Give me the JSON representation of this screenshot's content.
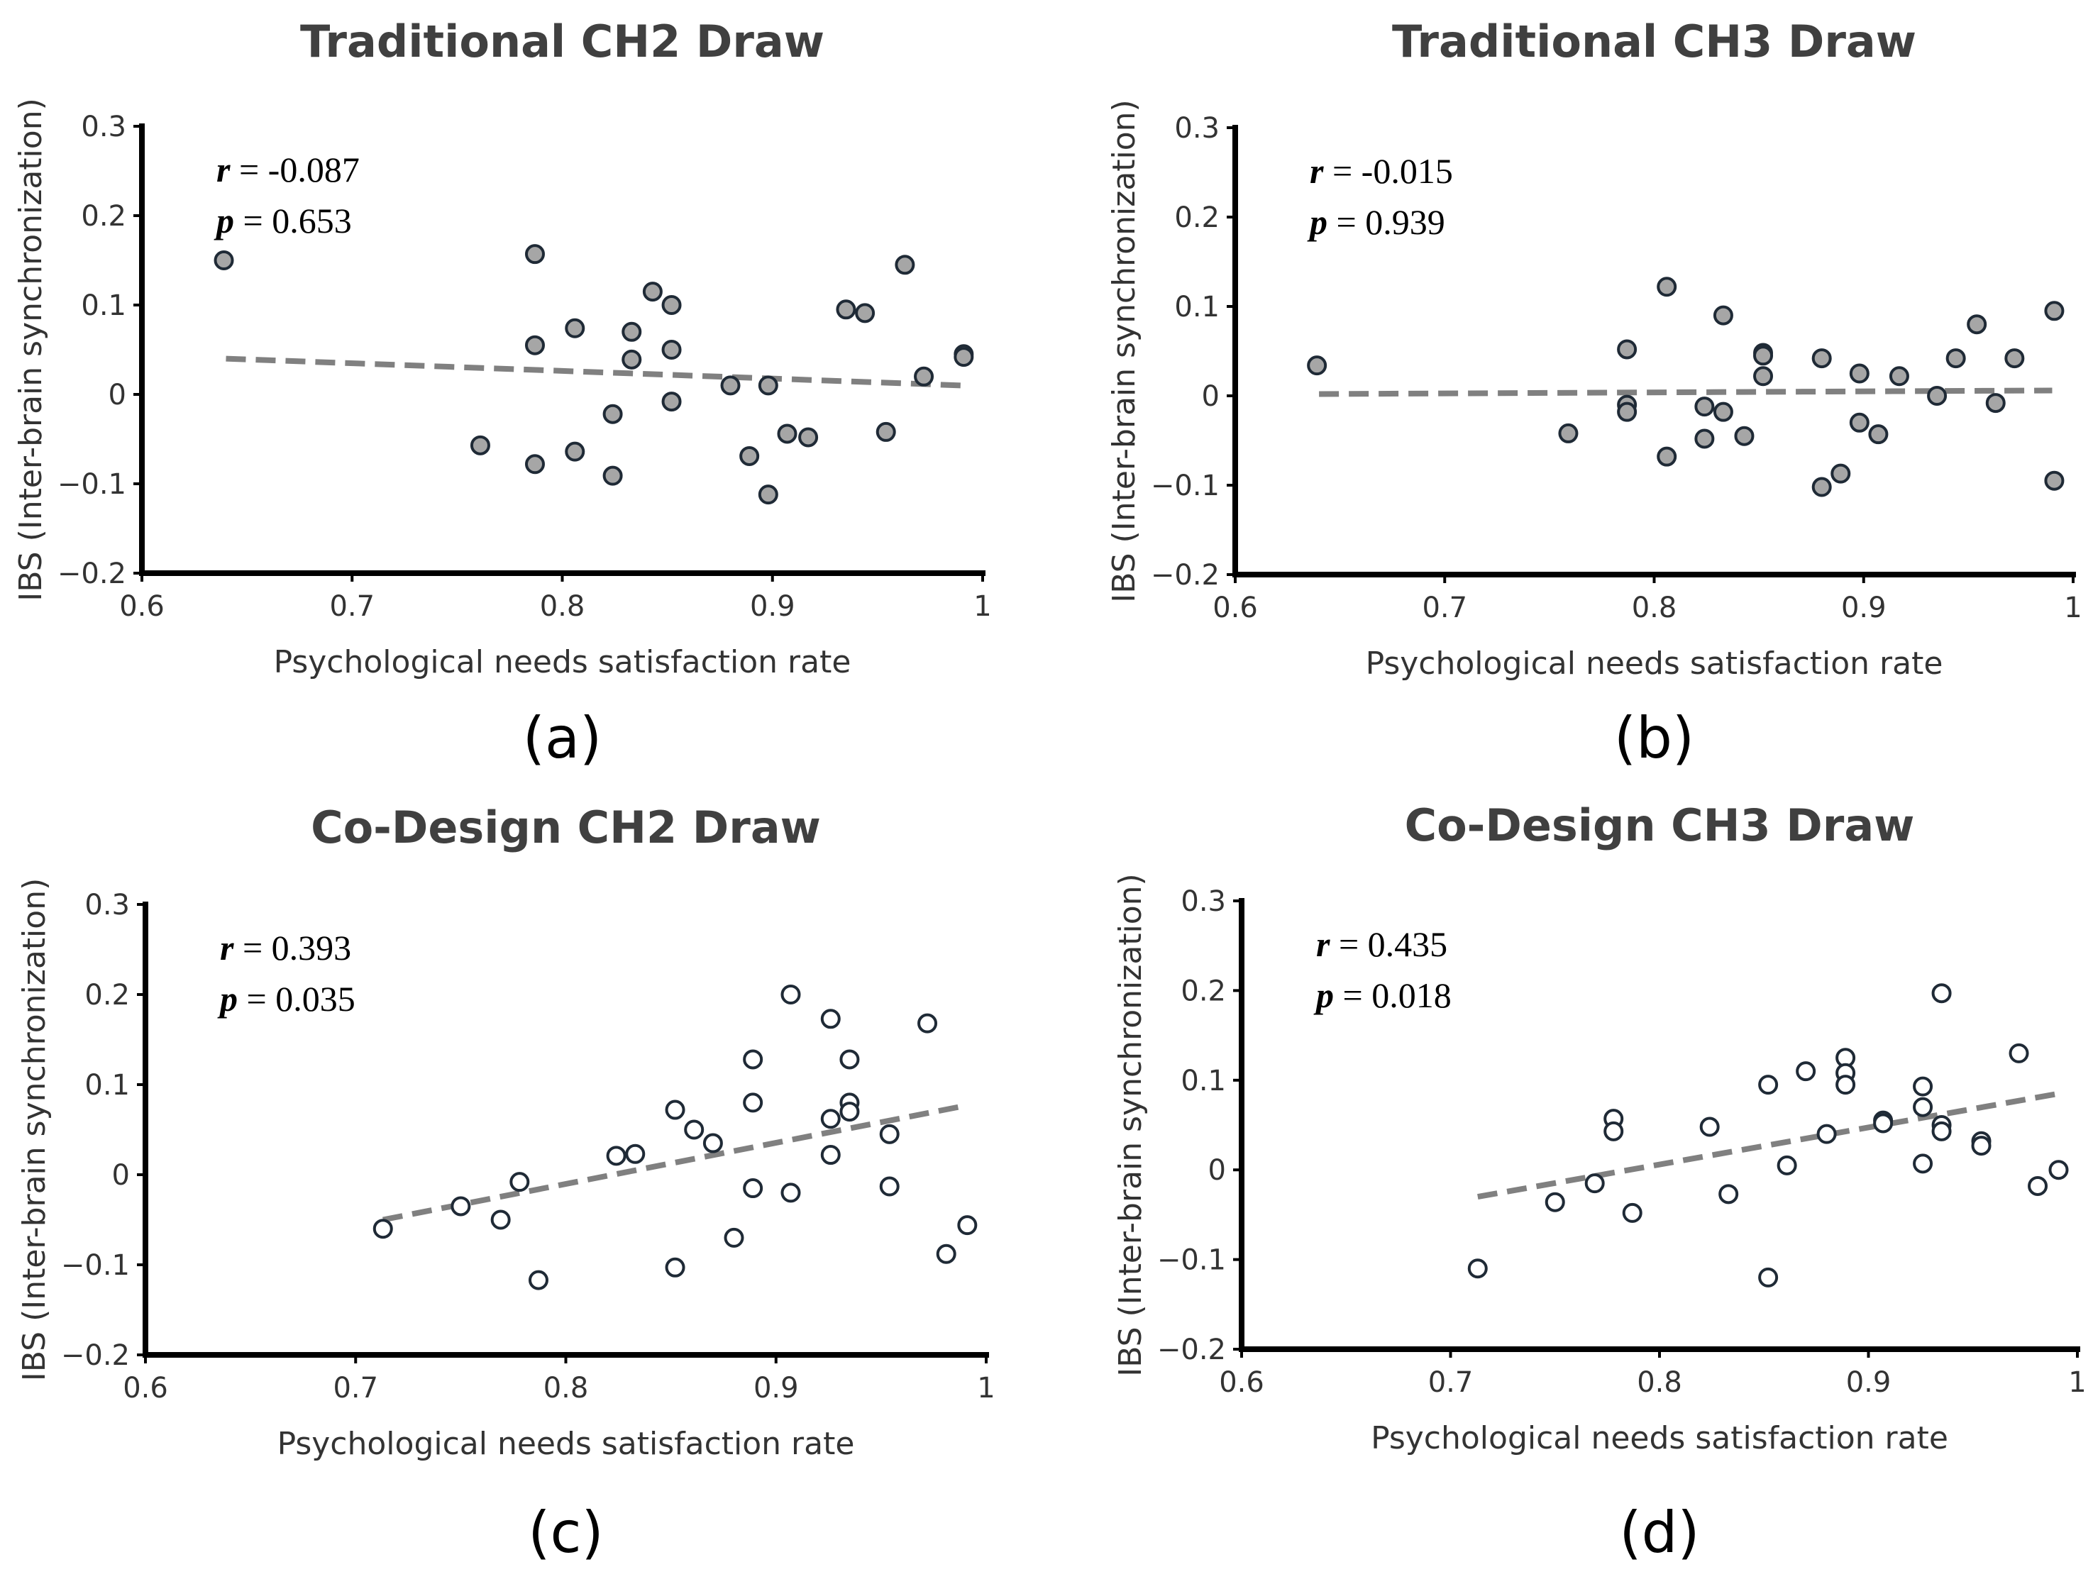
{
  "chart_data": [
    {
      "type": "scatter",
      "panel_label": "(a)",
      "title": "Traditional CH2 Draw",
      "xlabel": "Psychological needs satisfaction rate",
      "ylabel": "IBS (Inter-brain synchronization)",
      "xlim": [
        0.6,
        1
      ],
      "ylim": [
        -0.2,
        0.3
      ],
      "xticks": [
        "0.6",
        "0.7",
        "0.8",
        "0.9",
        "1"
      ],
      "yticks": [
        "0.3",
        "0.2",
        "0.1",
        "0",
        "−0.1",
        "−0.2"
      ],
      "stats": {
        "r_label": "r",
        "r_value": "-0.087",
        "p_label": "p",
        "p_value": "0.653"
      },
      "marker": {
        "fill": "#a6a6a6",
        "edge": "#1f2a36"
      },
      "trend_line": {
        "x": [
          0.64,
          0.99
        ],
        "y": [
          0.04,
          0.01
        ],
        "color": "#808080",
        "style": "dashed"
      },
      "points": {
        "x": [
          0.639,
          0.761,
          0.787,
          0.787,
          0.787,
          0.806,
          0.806,
          0.824,
          0.824,
          0.833,
          0.833,
          0.843,
          0.852,
          0.852,
          0.852,
          0.88,
          0.889,
          0.898,
          0.898,
          0.907,
          0.917,
          0.935,
          0.944,
          0.954,
          0.963,
          0.972,
          0.991,
          0.991
        ],
        "y": [
          0.15,
          -0.057,
          0.157,
          0.055,
          -0.078,
          0.074,
          -0.064,
          -0.022,
          -0.091,
          0.07,
          0.039,
          0.115,
          0.1,
          0.05,
          -0.008,
          0.01,
          -0.069,
          0.01,
          -0.112,
          -0.044,
          -0.048,
          0.095,
          0.091,
          -0.042,
          0.145,
          0.02,
          0.045,
          0.042
        ]
      }
    },
    {
      "type": "scatter",
      "panel_label": "(b)",
      "title": "Traditional CH3 Draw",
      "xlabel": "Psychological needs satisfaction rate",
      "ylabel": "IBS (Inter-brain synchronization)",
      "xlim": [
        0.6,
        1
      ],
      "ylim": [
        -0.2,
        0.3
      ],
      "xticks": [
        "0.6",
        "0.7",
        "0.8",
        "0.9",
        "1"
      ],
      "yticks": [
        "0.3",
        "0.2",
        "0.1",
        "0",
        "−0.1",
        "−0.2"
      ],
      "stats": {
        "r_label": "r",
        "r_value": "-0.015",
        "p_label": "p",
        "p_value": "0.939"
      },
      "marker": {
        "fill": "#a6a6a6",
        "edge": "#1f2a36"
      },
      "trend_line": {
        "x": [
          0.64,
          0.99
        ],
        "y": [
          0.002,
          0.006
        ],
        "color": "#808080",
        "style": "dashed"
      },
      "points": {
        "x": [
          0.639,
          0.759,
          0.787,
          0.787,
          0.787,
          0.806,
          0.806,
          0.824,
          0.824,
          0.833,
          0.833,
          0.843,
          0.852,
          0.852,
          0.852,
          0.88,
          0.88,
          0.889,
          0.898,
          0.898,
          0.907,
          0.917,
          0.935,
          0.944,
          0.954,
          0.963,
          0.972,
          0.991,
          0.991
        ],
        "y": [
          0.034,
          -0.042,
          0.052,
          -0.01,
          -0.018,
          0.122,
          -0.068,
          -0.012,
          -0.048,
          0.09,
          -0.018,
          -0.045,
          0.048,
          0.045,
          0.022,
          0.042,
          -0.102,
          -0.087,
          0.025,
          -0.03,
          -0.043,
          0.022,
          0.0,
          0.042,
          0.08,
          -0.008,
          0.042,
          0.095,
          -0.095
        ]
      }
    },
    {
      "type": "scatter",
      "panel_label": "(c)",
      "title": "Co-Design CH2 Draw",
      "xlabel": "Psychological needs satisfaction rate",
      "ylabel": "IBS (Inter-brain synchronization)",
      "xlim": [
        0.6,
        1
      ],
      "ylim": [
        -0.2,
        0.3
      ],
      "xticks": [
        "0.6",
        "0.7",
        "0.8",
        "0.9",
        "1"
      ],
      "yticks": [
        "0.3",
        "0.2",
        "0.1",
        "0",
        "−0.1",
        "−0.2"
      ],
      "stats": {
        "r_label": "r",
        "r_value": "0.393",
        "p_label": "p",
        "p_value": "0.035"
      },
      "marker": {
        "fill": "#ffffff",
        "edge": "#1f2a36"
      },
      "trend_line": {
        "x": [
          0.713,
          0.991
        ],
        "y": [
          -0.05,
          0.077
        ],
        "color": "#808080",
        "style": "dashed"
      },
      "points": {
        "x": [
          0.713,
          0.75,
          0.769,
          0.778,
          0.787,
          0.824,
          0.833,
          0.852,
          0.852,
          0.861,
          0.87,
          0.88,
          0.889,
          0.889,
          0.889,
          0.907,
          0.907,
          0.926,
          0.926,
          0.926,
          0.935,
          0.935,
          0.935,
          0.954,
          0.954,
          0.972,
          0.981,
          0.991
        ],
        "y": [
          -0.06,
          -0.035,
          -0.05,
          -0.008,
          -0.117,
          0.021,
          0.023,
          0.072,
          -0.103,
          0.05,
          0.035,
          -0.07,
          0.128,
          0.08,
          -0.015,
          0.2,
          -0.02,
          0.173,
          0.062,
          0.022,
          0.128,
          0.08,
          0.07,
          0.045,
          -0.013,
          0.168,
          -0.088,
          -0.056
        ]
      }
    },
    {
      "type": "scatter",
      "panel_label": "(d)",
      "title": "Co-Design CH3 Draw",
      "xlabel": "Psychological needs satisfaction rate",
      "ylabel": "IBS (Inter-brain synchronization)",
      "xlim": [
        0.6,
        1
      ],
      "ylim": [
        -0.2,
        0.3
      ],
      "xticks": [
        "0.6",
        "0.7",
        "0.8",
        "0.9",
        "1"
      ],
      "yticks": [
        "0.3",
        "0.2",
        "0.1",
        "0",
        "−0.1",
        "−0.2"
      ],
      "stats": {
        "r_label": "r",
        "r_value": "0.435",
        "p_label": "p",
        "p_value": "0.018"
      },
      "marker": {
        "fill": "#ffffff",
        "edge": "#1f2a36"
      },
      "trend_line": {
        "x": [
          0.713,
          0.991
        ],
        "y": [
          -0.03,
          0.085
        ],
        "color": "#808080",
        "style": "dashed"
      },
      "points": {
        "x": [
          0.713,
          0.75,
          0.769,
          0.778,
          0.778,
          0.787,
          0.824,
          0.833,
          0.852,
          0.852,
          0.861,
          0.87,
          0.88,
          0.889,
          0.889,
          0.889,
          0.907,
          0.907,
          0.926,
          0.926,
          0.926,
          0.935,
          0.935,
          0.935,
          0.954,
          0.954,
          0.972,
          0.981,
          0.991
        ],
        "y": [
          -0.11,
          -0.036,
          -0.015,
          0.057,
          0.043,
          -0.048,
          0.048,
          -0.027,
          0.095,
          -0.12,
          0.005,
          0.11,
          0.04,
          0.125,
          0.108,
          0.095,
          0.055,
          0.052,
          0.093,
          0.07,
          0.007,
          0.197,
          0.05,
          0.043,
          0.032,
          0.027,
          0.13,
          -0.018,
          0.0
        ]
      }
    }
  ]
}
